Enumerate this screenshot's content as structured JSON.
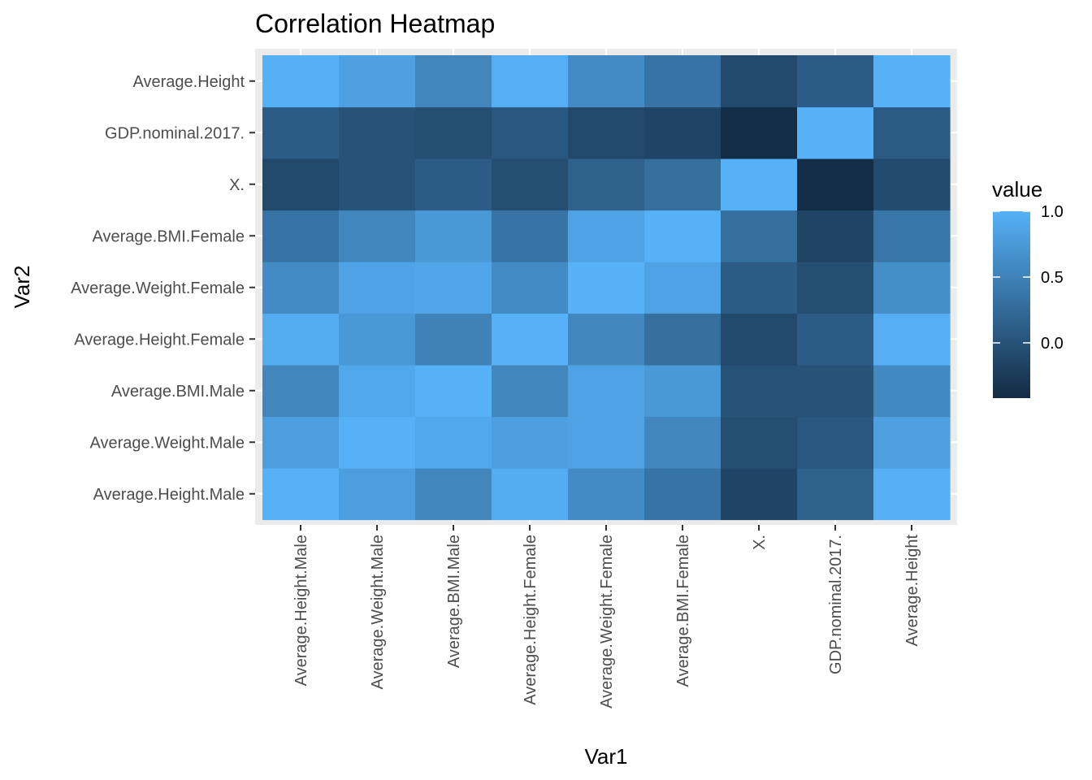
{
  "chart_data": {
    "type": "heatmap",
    "title": "Correlation Heatmap",
    "xlabel": "Var1",
    "ylabel": "Var2",
    "x_categories": [
      "Average.Height.Male",
      "Average.Weight.Male",
      "Average.BMI.Male",
      "Average.Height.Female",
      "Average.Weight.Female",
      "Average.BMI.Female",
      "X.",
      "GDP.nominal.2017.",
      "Average.Height"
    ],
    "y_categories": [
      "Average.Height.Male",
      "Average.Weight.Male",
      "Average.BMI.Male",
      "Average.Height.Female",
      "Average.Weight.Female",
      "Average.BMI.Female",
      "X.",
      "GDP.nominal.2017.",
      "Average.Height"
    ],
    "values": [
      [
        1.0,
        0.8,
        0.55,
        0.95,
        0.6,
        0.35,
        -0.15,
        0.15,
        0.99
      ],
      [
        0.8,
        1.0,
        0.9,
        0.8,
        0.85,
        0.55,
        -0.05,
        0.05,
        0.82
      ],
      [
        0.55,
        0.9,
        1.0,
        0.55,
        0.85,
        0.75,
        0.0,
        0.0,
        0.58
      ],
      [
        0.95,
        0.75,
        0.5,
        1.0,
        0.55,
        0.3,
        -0.1,
        0.1,
        0.97
      ],
      [
        0.6,
        0.85,
        0.88,
        0.6,
        1.0,
        0.85,
        0.1,
        -0.05,
        0.64
      ],
      [
        0.35,
        0.55,
        0.75,
        0.35,
        0.85,
        1.0,
        0.3,
        -0.15,
        0.37
      ],
      [
        -0.1,
        0.0,
        0.1,
        -0.05,
        0.15,
        0.3,
        1.0,
        -0.4,
        -0.08
      ],
      [
        0.1,
        0.0,
        -0.05,
        0.05,
        -0.1,
        -0.15,
        -0.4,
        1.0,
        0.08
      ],
      [
        0.99,
        0.82,
        0.55,
        0.97,
        0.6,
        0.35,
        -0.1,
        0.1,
        1.0
      ]
    ],
    "value_range": [
      -0.42,
      1.0
    ],
    "legend": {
      "title": "value",
      "ticks": [
        1.0,
        0.5,
        0.0
      ],
      "tick_labels": [
        "1.0",
        "0.5",
        "0.0"
      ],
      "placement": "right"
    },
    "color_low": "#132B43",
    "color_high": "#56B1F7",
    "panel_background": "#EBEBEB",
    "grid": true
  }
}
